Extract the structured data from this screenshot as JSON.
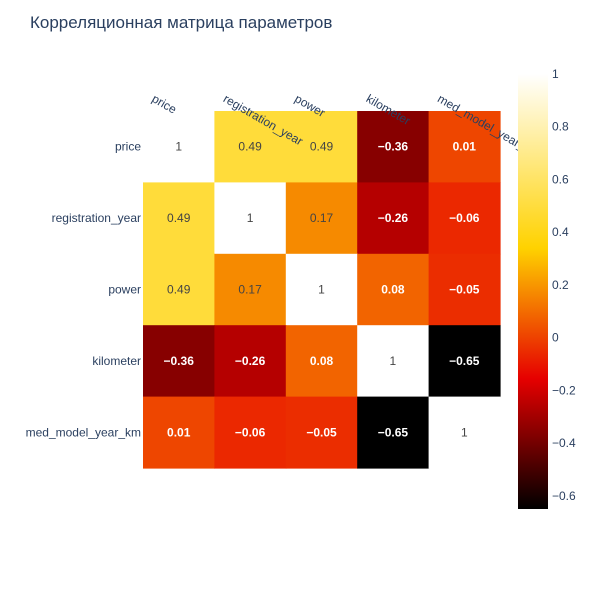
{
  "chart_data": {
    "type": "heatmap",
    "title": "Корреляционная матрица параметров",
    "x_categories": [
      "price",
      "registration_year",
      "power",
      "kilometer",
      "med_model_year_km"
    ],
    "y_categories": [
      "price",
      "registration_year",
      "power",
      "kilometer",
      "med_model_year_km"
    ],
    "values": [
      [
        1,
        0.49,
        0.49,
        -0.36,
        0.01
      ],
      [
        0.49,
        1,
        0.17,
        -0.26,
        -0.06
      ],
      [
        0.49,
        0.17,
        1,
        0.08,
        -0.05
      ],
      [
        -0.36,
        -0.26,
        0.08,
        1,
        -0.65
      ],
      [
        0.01,
        -0.06,
        -0.05,
        -0.65,
        1
      ]
    ],
    "cell_labels": [
      [
        "1",
        "0.49",
        "0.49",
        "−0.36",
        "0.01"
      ],
      [
        "0.49",
        "1",
        "0.17",
        "−0.26",
        "−0.06"
      ],
      [
        "0.49",
        "0.17",
        "1",
        "0.08",
        "−0.05"
      ],
      [
        "−0.36",
        "−0.26",
        "0.08",
        "1",
        "−0.65"
      ],
      [
        "0.01",
        "−0.06",
        "−0.05",
        "−0.65",
        "1"
      ]
    ],
    "colorscale": "hot",
    "zrange": [
      -0.65,
      1
    ],
    "colorbar": {
      "ticks": [
        1,
        0.8,
        0.6,
        0.4,
        0.2,
        0,
        -0.2,
        -0.4,
        -0.6
      ],
      "tick_labels": [
        "1",
        "0.8",
        "0.6",
        "0.4",
        "0.2",
        "0",
        "−0.2",
        "−0.4",
        "−0.6"
      ]
    },
    "x_axis_side": "top",
    "grid": false
  }
}
